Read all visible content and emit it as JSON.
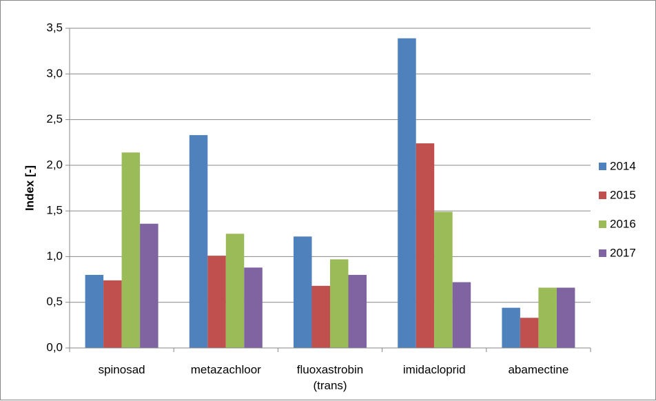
{
  "chart_data": {
    "type": "bar",
    "categories": [
      [
        "spinosad"
      ],
      [
        "metazachloor"
      ],
      [
        "fluoxastrobin",
        "(trans)"
      ],
      [
        "imidacloprid"
      ],
      [
        "abamectine"
      ]
    ],
    "series": [
      {
        "name": "2014",
        "color": "#4F81BD",
        "values": [
          0.8,
          2.33,
          1.22,
          3.39,
          0.44
        ]
      },
      {
        "name": "2015",
        "color": "#C0504D",
        "values": [
          0.74,
          1.01,
          0.68,
          2.24,
          0.33
        ]
      },
      {
        "name": "2016",
        "color": "#9BBB59",
        "values": [
          2.14,
          1.25,
          0.97,
          1.49,
          0.66
        ]
      },
      {
        "name": "2017",
        "color": "#8064A2",
        "values": [
          1.36,
          0.88,
          0.8,
          0.72,
          0.66
        ]
      }
    ],
    "title": "",
    "xlabel": "",
    "ylabel": "Index [-]",
    "ylim": [
      0,
      3.5
    ],
    "yticks": [
      "0,0",
      "0,5",
      "1,0",
      "1,5",
      "2,0",
      "2,5",
      "3,0",
      "3,5"
    ],
    "grid": true,
    "legend_position": "right",
    "gridline_color": "#868686"
  }
}
